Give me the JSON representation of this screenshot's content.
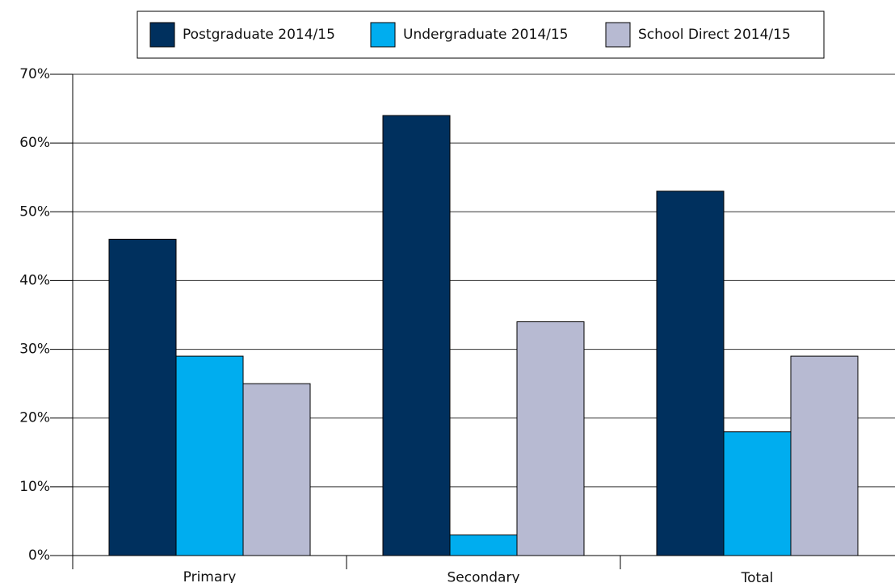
{
  "chart_data": {
    "type": "bar",
    "categories": [
      "Primary",
      "Secondary",
      "Total"
    ],
    "series": [
      {
        "name": "Postgraduate 2014/15",
        "color": "#00305e",
        "values": [
          46,
          64,
          53
        ]
      },
      {
        "name": "Undergraduate 2014/15",
        "color": "#00adef",
        "values": [
          29,
          3,
          18
        ]
      },
      {
        "name": "School Direct 2014/15",
        "color": "#b7bad2",
        "values": [
          25,
          34,
          29
        ]
      }
    ],
    "ylim": [
      0,
      70
    ],
    "yticks": [
      {
        "value": 0,
        "label": "0%"
      },
      {
        "value": 10,
        "label": "10%"
      },
      {
        "value": 20,
        "label": "20%"
      },
      {
        "value": 30,
        "label": "30%"
      },
      {
        "value": 40,
        "label": "40%"
      },
      {
        "value": 50,
        "label": "50%"
      },
      {
        "value": 60,
        "label": "60%"
      },
      {
        "value": 70,
        "label": "70%"
      }
    ],
    "grid": true,
    "legend": "top"
  }
}
